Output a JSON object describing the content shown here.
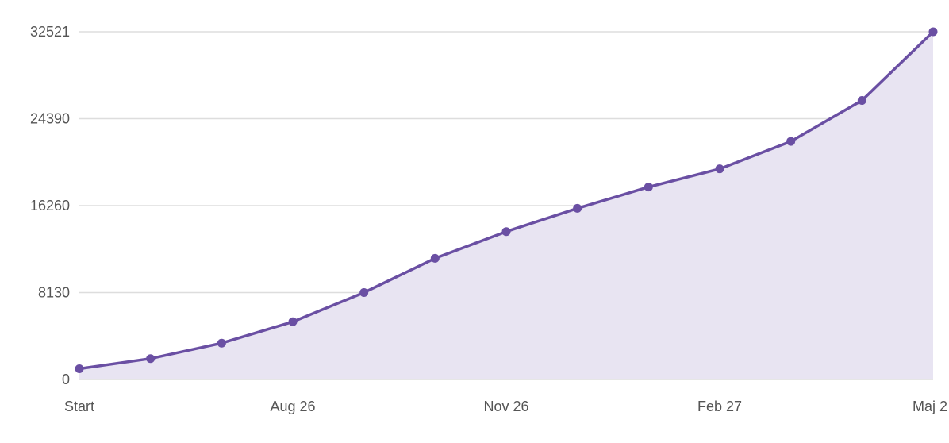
{
  "chart_data": {
    "type": "area",
    "title": "",
    "xlabel": "",
    "ylabel": "",
    "ylim": [
      0,
      32521
    ],
    "y_ticks": [
      0,
      8130,
      16260,
      24390,
      32521
    ],
    "x_tick_labels": [
      {
        "label": "Start",
        "index": 0
      },
      {
        "label": "Aug 26",
        "index": 3
      },
      {
        "label": "Nov 26",
        "index": 6
      },
      {
        "label": "Feb 27",
        "index": 9
      },
      {
        "label": "Maj 2",
        "index": 12
      }
    ],
    "grid": true,
    "legend": "none",
    "series": [
      {
        "values": [
          1000,
          1950,
          3400,
          5400,
          8130,
          11330,
          13830,
          16010,
          18000,
          19700,
          22270,
          26100,
          32521
        ]
      }
    ]
  },
  "colors": {
    "line": "#6a4fa3",
    "fill": "#e8e4f2",
    "grid": "#dddddd",
    "axis_text": "#555555"
  }
}
